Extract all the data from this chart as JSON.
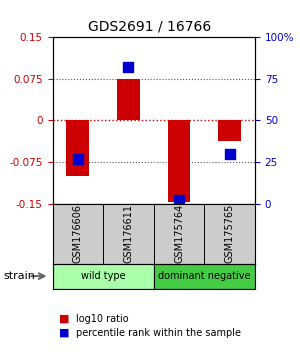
{
  "title": "GDS2691 / 16766",
  "samples": [
    "GSM176606",
    "GSM176611",
    "GSM175764",
    "GSM175765"
  ],
  "log10_ratio": [
    -0.1,
    0.075,
    -0.148,
    -0.038
  ],
  "percentile_rank": [
    27,
    82,
    2,
    30
  ],
  "ylim_left": [
    -0.15,
    0.15
  ],
  "ylim_right": [
    0,
    100
  ],
  "yticks_left": [
    -0.15,
    -0.075,
    0,
    0.075,
    0.15
  ],
  "ytick_labels_left": [
    "-0.15",
    "-0.075",
    "0",
    "0.075",
    "0.15"
  ],
  "yticks_right": [
    0,
    25,
    50,
    75,
    100
  ],
  "ytick_labels_right": [
    "0",
    "25",
    "50",
    "75",
    "100%"
  ],
  "groups": [
    {
      "label": "wild type",
      "spans": [
        0,
        1
      ],
      "color": "#aaffaa"
    },
    {
      "label": "dominant negative",
      "spans": [
        2,
        3
      ],
      "color": "#44cc44"
    }
  ],
  "bar_color": "#cc0000",
  "dot_color": "#0000cc",
  "bar_width": 0.45,
  "dot_size": 55,
  "title_color": "#000000",
  "left_tick_color": "#cc0000",
  "right_tick_color": "#0000cc",
  "hline_zero_color": "#cc0000",
  "hline_other_color": "#555555",
  "sample_box_color": "#cccccc",
  "background_color": "#ffffff"
}
